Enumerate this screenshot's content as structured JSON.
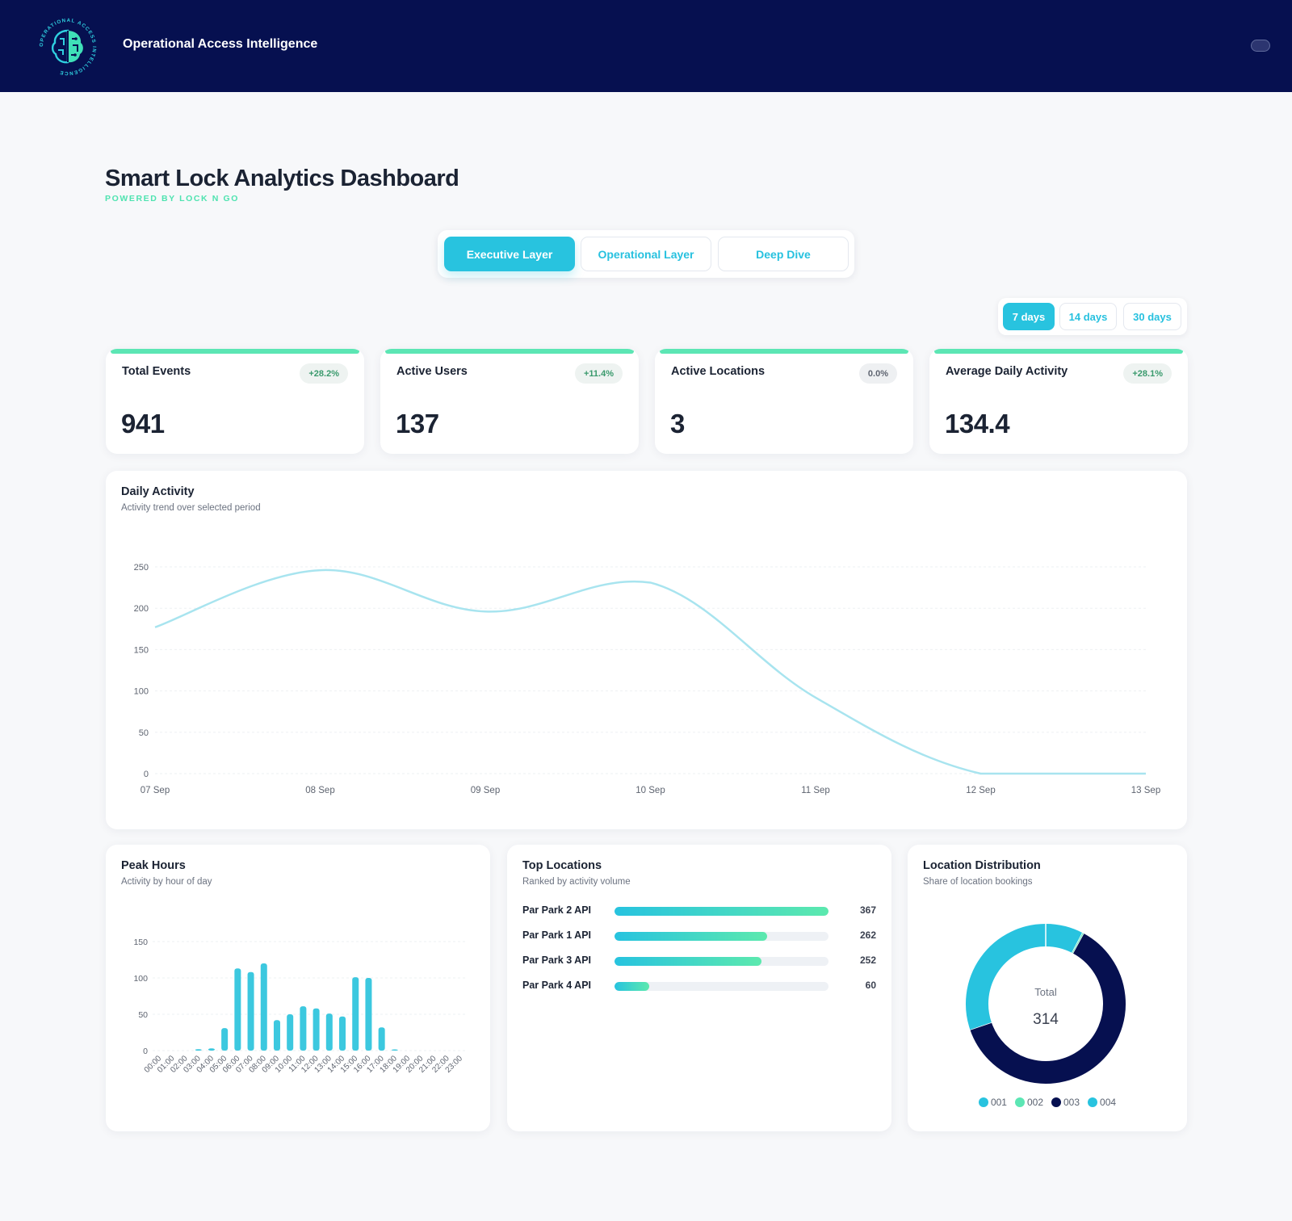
{
  "header": {
    "app_title": "Operational Access Intelligence",
    "logo_name": "brain-logo",
    "logo_ring_text": "OPERATIONAL ACCESS INTELLIGENCE"
  },
  "page": {
    "title": "Smart Lock Analytics Dashboard",
    "subtitle": "POWERED BY LOCK N GO"
  },
  "layer_tabs": [
    {
      "label": "Executive Layer",
      "active": true
    },
    {
      "label": "Operational Layer",
      "active": false
    },
    {
      "label": "Deep Dive",
      "active": false
    }
  ],
  "range_tabs": [
    {
      "label": "7 days",
      "active": true
    },
    {
      "label": "14 days",
      "active": false
    },
    {
      "label": "30 days",
      "active": false
    }
  ],
  "kpis": [
    {
      "label": "Total Events",
      "badge": "+28.2%",
      "value": "941"
    },
    {
      "label": "Active Users",
      "badge": "+11.4%",
      "value": "137"
    },
    {
      "label": "Active Locations",
      "badge": "0.0%",
      "value": "3"
    },
    {
      "label": "Average Daily Activity",
      "badge": "+28.1%",
      "value": "134.4"
    }
  ],
  "daily_activity": {
    "title": "Daily Activity",
    "subtitle": "Activity trend over selected period"
  },
  "peak_hours": {
    "title": "Peak Hours",
    "subtitle": "Activity by hour of day"
  },
  "top_locations": {
    "title": "Top Locations",
    "subtitle": "Ranked by activity volume",
    "items": [
      {
        "name": "Par Park 2 API",
        "value": 367
      },
      {
        "name": "Par Park 1 API",
        "value": 262
      },
      {
        "name": "Par Park 3 API",
        "value": 252
      },
      {
        "name": "Par Park 4 API",
        "value": 60
      }
    ]
  },
  "location_distribution": {
    "title": "Location Distribution",
    "subtitle": "Share of location bookings",
    "total_label": "Total",
    "total_value": "314"
  },
  "colors": {
    "navy": "#061050",
    "cyan": "#28c3df",
    "mint": "#5ce6b4",
    "line": "#a8e4ef"
  },
  "chart_data": [
    {
      "type": "line",
      "categories": [
        "07 Sep",
        "08 Sep",
        "09 Sep",
        "10 Sep",
        "11 Sep",
        "12 Sep",
        "13 Sep"
      ],
      "values": [
        177,
        246,
        196,
        231,
        92,
        0,
        0
      ],
      "ylim": [
        0,
        250
      ],
      "yticks": [
        0,
        50,
        100,
        150,
        200,
        250
      ],
      "grid": true
    },
    {
      "type": "bar",
      "categories": [
        "00:00",
        "01:00",
        "02:00",
        "03:00",
        "04:00",
        "05:00",
        "06:00",
        "07:00",
        "08:00",
        "09:00",
        "10:00",
        "11:00",
        "12:00",
        "13:00",
        "14:00",
        "15:00",
        "16:00",
        "17:00",
        "18:00",
        "19:00",
        "20:00",
        "21:00",
        "22:00",
        "23:00"
      ],
      "values": [
        0,
        0,
        0,
        2,
        3,
        31,
        113,
        108,
        120,
        42,
        50,
        61,
        58,
        51,
        47,
        101,
        100,
        32,
        1,
        0,
        0,
        0,
        0,
        0
      ],
      "ylim": [
        0,
        150
      ],
      "yticks": [
        0,
        50,
        100,
        150
      ],
      "grid": true
    },
    {
      "type": "pie",
      "categories": [
        "001",
        "002",
        "003",
        "004"
      ],
      "values": [
        24,
        1,
        194,
        95
      ],
      "colors": [
        "#28c3df",
        "#5ce6b4",
        "#061050",
        "#28c3df"
      ],
      "legend": "bottom"
    }
  ]
}
